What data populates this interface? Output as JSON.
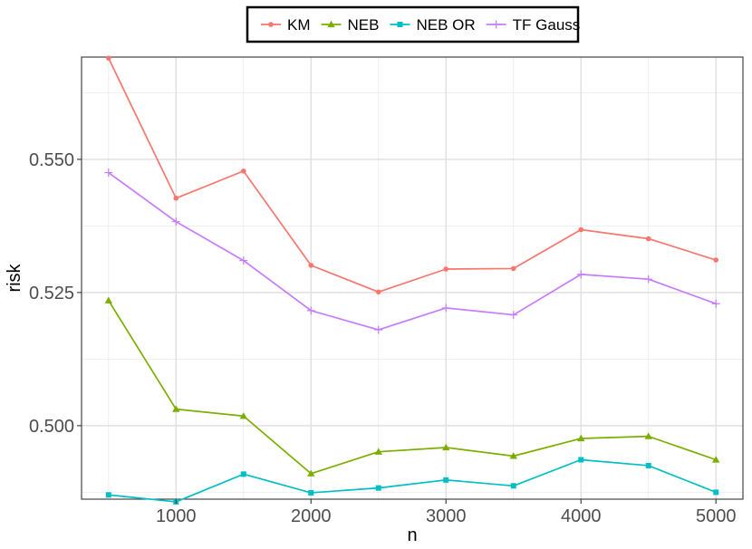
{
  "chart_data": {
    "type": "line",
    "xlabel": "n",
    "ylabel": "risk",
    "x": [
      500,
      1000,
      1500,
      2000,
      2500,
      3000,
      3500,
      4000,
      4500,
      5000
    ],
    "xlim": [
      300,
      5200
    ],
    "ylim": [
      0.4862,
      0.5692
    ],
    "xticks": [
      1000,
      2000,
      3000,
      4000,
      5000
    ],
    "xtick_labels": [
      "1000",
      "2000",
      "3000",
      "4000",
      "5000"
    ],
    "yticks": [
      0.5,
      0.525,
      0.55
    ],
    "ytick_labels": [
      "0.500",
      "0.525",
      "0.550"
    ],
    "grid": true,
    "legend_position": "top",
    "series": [
      {
        "name": "KM",
        "color": "#F8766D",
        "marker": "circle",
        "values": [
          0.569,
          0.5427,
          0.5478,
          0.5301,
          0.5251,
          0.5294,
          0.5295,
          0.5368,
          0.5351,
          0.5311
        ]
      },
      {
        "name": "NEB",
        "color": "#7CAE00",
        "marker": "triangle",
        "values": [
          0.5235,
          0.5031,
          0.5018,
          0.491,
          0.4951,
          0.4959,
          0.4943,
          0.4976,
          0.498,
          0.4936
        ]
      },
      {
        "name": "NEB OR",
        "color": "#00BFC4",
        "marker": "square",
        "values": [
          0.487,
          0.4857,
          0.4909,
          0.4874,
          0.4883,
          0.4898,
          0.4887,
          0.4936,
          0.4925,
          0.4875
        ]
      },
      {
        "name": "TF Gauss",
        "color": "#C77CFF",
        "marker": "plus",
        "values": [
          0.5475,
          0.5383,
          0.531,
          0.5216,
          0.518,
          0.5221,
          0.5208,
          0.5284,
          0.5275,
          0.5229
        ]
      }
    ]
  }
}
